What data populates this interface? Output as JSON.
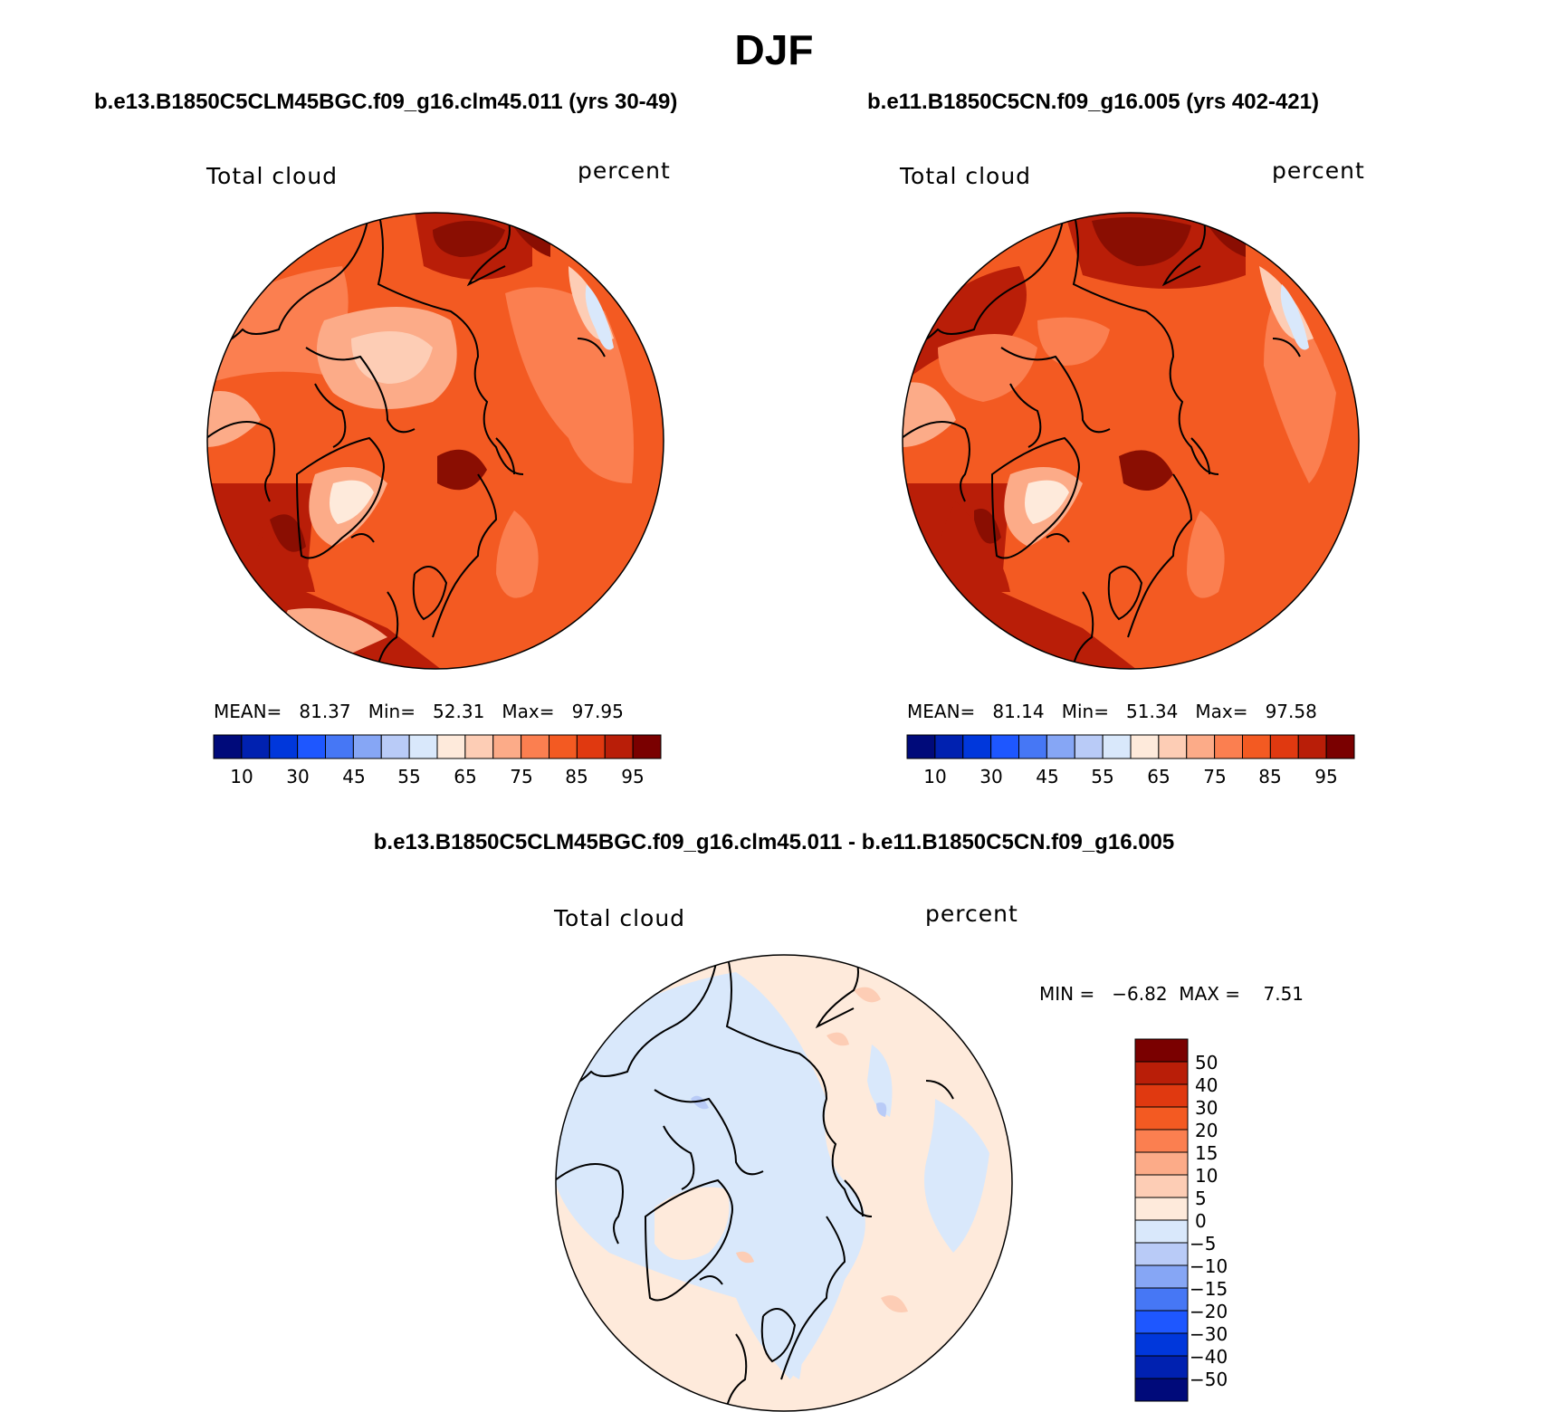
{
  "title": "DJF",
  "panels": [
    {
      "case": "b.e13.B1850C5CLM45BGC.f09_g16.clm45.011 (yrs 30-49)",
      "variable": "Total cloud",
      "units": "percent",
      "mean_label": "MEAN=",
      "mean": "81.37",
      "min_label": "Min=",
      "min": "52.31",
      "max_label": "Max=",
      "max": "97.95"
    },
    {
      "case": "b.e11.B1850C5CN.f09_g16.005 (yrs 402-421)",
      "variable": "Total cloud",
      "units": "percent",
      "mean_label": "MEAN=",
      "mean": "81.14",
      "min_label": "Min=",
      "min": "51.34",
      "max_label": "Max=",
      "max": "97.58"
    }
  ],
  "diff": {
    "title": "b.e13.B1850C5CLM45BGC.f09_g16.clm45.011 - b.e11.B1850C5CN.f09_g16.005",
    "variable": "Total cloud",
    "units": "percent",
    "minmax_text": "MIN =   −6.82  MAX =    7.51"
  },
  "colorbar_abs": {
    "colors": [
      "#000a7a",
      "#0021b0",
      "#0037db",
      "#1e57ff",
      "#4677f5",
      "#86a6f5",
      "#b9cbf7",
      "#d9e8fb",
      "#feeadb",
      "#fdcdb5",
      "#fcab88",
      "#fb7f50",
      "#f35a22",
      "#e03910",
      "#b91e08",
      "#7a0000"
    ],
    "tick_labels": [
      "10",
      "30",
      "45",
      "55",
      "65",
      "75",
      "85",
      "95"
    ]
  },
  "colorbar_diff": {
    "colors": [
      "#7a0000",
      "#b91e08",
      "#e03910",
      "#f35a22",
      "#fb7f50",
      "#fcab88",
      "#fdcdb5",
      "#feeadb",
      "#d9e8fb",
      "#b9cbf7",
      "#86a6f5",
      "#4677f5",
      "#1e57ff",
      "#0037db",
      "#0021b0",
      "#000a7a"
    ],
    "tick_labels": [
      "50",
      "40",
      "30",
      "20",
      "15",
      "10",
      "5",
      "0",
      "−5",
      "−10",
      "−15",
      "−20",
      "−30",
      "−40",
      "−50"
    ]
  },
  "map_colors": {
    "deep": "#b91e08",
    "main": "#f35a22",
    "mid": "#fb7f50",
    "light": "#fcab88",
    "pale": "#fdcdb5",
    "paler": "#feeadb",
    "icy": "#d9e8fb",
    "icy2": "#b9cbf7",
    "darkest": "#8a0e02",
    "diff_pos": "#feeadb",
    "diff_neg": "#d9e8fb",
    "diff_pos2": "#fdcdb5",
    "diff_neg2": "#b9cbf7"
  }
}
